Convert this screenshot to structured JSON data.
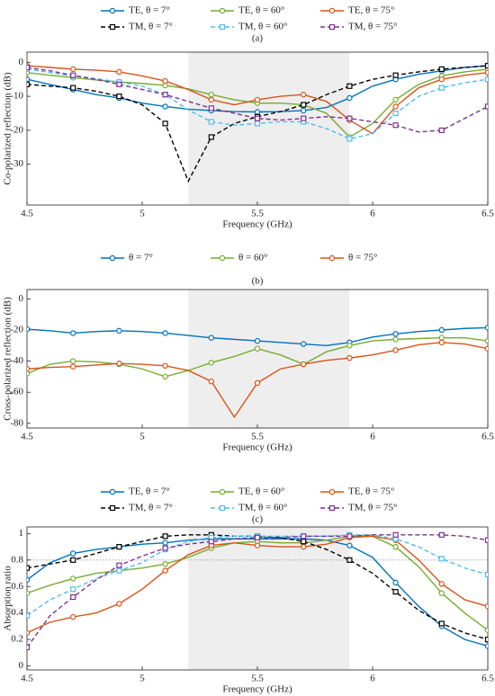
{
  "chart_data": [
    {
      "type": "line",
      "title": "(a)",
      "xlabel": "Frequency (GHz)",
      "ylabel": "Co-polarized reflection (dB)",
      "x": [
        4.5,
        4.6,
        4.7,
        4.8,
        4.9,
        5.0,
        5.1,
        5.2,
        5.3,
        5.4,
        5.5,
        5.6,
        5.7,
        5.8,
        5.9,
        6.0,
        6.1,
        6.2,
        6.3,
        6.4,
        6.5
      ],
      "xlim": [
        4.5,
        6.5
      ],
      "xticks": [
        4.5,
        5,
        5.5,
        6,
        6.5
      ],
      "ylim": [
        -42,
        3
      ],
      "yticks": [
        0,
        -10,
        -20,
        -30
      ],
      "highlight": [
        5.2,
        5.9
      ],
      "series": [
        {
          "name": "TE, θ = 7°",
          "color": "#0072bd",
          "marker": "circle",
          "dashed": false,
          "values": [
            -5,
            -6.5,
            -8,
            -9.5,
            -10.5,
            -12,
            -13,
            -13.8,
            -14.2,
            -14.5,
            -14.6,
            -14.5,
            -14.2,
            -13.3,
            -10.5,
            -7,
            -5,
            -3.5,
            -2.5,
            -1.5,
            -1
          ]
        },
        {
          "name": "TE, θ = 60°",
          "color": "#77ac30",
          "marker": "circle",
          "dashed": false,
          "values": [
            -3,
            -3.8,
            -4.5,
            -5.2,
            -5.8,
            -6.2,
            -6.8,
            -7.8,
            -9.5,
            -11,
            -12,
            -12,
            -12.5,
            -15,
            -22,
            -18,
            -11,
            -6.5,
            -4,
            -2.8,
            -2
          ]
        },
        {
          "name": "TE, θ = 75°",
          "color": "#d95319",
          "marker": "circle",
          "dashed": false,
          "values": [
            -1,
            -1.5,
            -2,
            -2.3,
            -2.8,
            -4,
            -5.5,
            -8,
            -11,
            -12.5,
            -11,
            -10,
            -9.5,
            -11.5,
            -17,
            -21,
            -13,
            -7.5,
            -5,
            -3.8,
            -3
          ]
        },
        {
          "name": "TM, θ = 7°",
          "color": "#000000",
          "marker": "square",
          "dashed": true,
          "values": [
            -6.5,
            -7,
            -7.5,
            -8.5,
            -10,
            -12.5,
            -18,
            -35,
            -22,
            -18,
            -16,
            -14.5,
            -12.5,
            -9.5,
            -7,
            -5,
            -3.8,
            -2.8,
            -2,
            -1.5,
            -1
          ]
        },
        {
          "name": "TM, θ = 60°",
          "color": "#4dbeee",
          "marker": "square",
          "dashed": true,
          "values": [
            -2,
            -3,
            -4,
            -4.8,
            -5.8,
            -7,
            -9.5,
            -14,
            -17.5,
            -18.5,
            -18,
            -17.5,
            -17.5,
            -19.5,
            -22.5,
            -21,
            -15,
            -10,
            -7.5,
            -6,
            -5
          ]
        },
        {
          "name": "TM, θ = 75°",
          "color": "#7e2f8e",
          "marker": "square",
          "dashed": true,
          "values": [
            -1.5,
            -2.5,
            -3.8,
            -5,
            -6.5,
            -8,
            -9.5,
            -11.5,
            -13.5,
            -15,
            -16.5,
            -17,
            -16.5,
            -16,
            -16.5,
            -17.5,
            -18.5,
            -20.5,
            -20,
            -16.5,
            -13
          ]
        }
      ]
    },
    {
      "type": "line",
      "title": "(b)",
      "xlabel": "Frequency (GHz)",
      "ylabel": "Cross-polarized reflection (dB)",
      "x": [
        4.5,
        4.6,
        4.7,
        4.8,
        4.9,
        5.0,
        5.1,
        5.2,
        5.3,
        5.4,
        5.5,
        5.6,
        5.7,
        5.8,
        5.9,
        6.0,
        6.1,
        6.2,
        6.3,
        6.4,
        6.5
      ],
      "xlim": [
        4.5,
        6.5
      ],
      "xticks": [
        4.5,
        5,
        5.5,
        6,
        6.5
      ],
      "ylim": [
        -83,
        6
      ],
      "yticks": [
        0,
        -20,
        -40,
        -60,
        -80
      ],
      "highlight": [
        5.2,
        5.9
      ],
      "series": [
        {
          "name": "θ = 7°",
          "color": "#0072bd",
          "marker": "circle",
          "dashed": false,
          "values": [
            -19.5,
            -20.5,
            -22,
            -21,
            -20.5,
            -21,
            -22,
            -23.5,
            -25,
            -26,
            -27,
            -28,
            -29,
            -30,
            -28,
            -24.5,
            -22.5,
            -21,
            -20,
            -19,
            -18.5
          ]
        },
        {
          "name": "θ = 60°",
          "color": "#77ac30",
          "marker": "circle",
          "dashed": false,
          "values": [
            -48,
            -42,
            -40,
            -40.5,
            -42,
            -45,
            -50,
            -46,
            -41,
            -37,
            -32,
            -36,
            -42,
            -34,
            -30,
            -27,
            -26,
            -25.5,
            -25,
            -25,
            -27
          ]
        },
        {
          "name": "θ = 75°",
          "color": "#d95319",
          "marker": "circle",
          "dashed": false,
          "values": [
            -45,
            -44,
            -43.5,
            -42.5,
            -41.5,
            -42,
            -43,
            -46,
            -53,
            -76,
            -54,
            -45,
            -42,
            -39.5,
            -38,
            -36,
            -33,
            -29.5,
            -28,
            -29,
            -32
          ]
        }
      ]
    },
    {
      "type": "line",
      "title": "(c)",
      "xlabel": "Frequency (GHz)",
      "ylabel": "Absorption ratio",
      "x": [
        4.5,
        4.6,
        4.7,
        4.8,
        4.9,
        5.0,
        5.1,
        5.2,
        5.3,
        5.4,
        5.5,
        5.6,
        5.7,
        5.8,
        5.9,
        6.0,
        6.1,
        6.2,
        6.3,
        6.4,
        6.5
      ],
      "xlim": [
        4.5,
        6.5
      ],
      "xticks": [
        4.5,
        5,
        5.5,
        6,
        6.5
      ],
      "ylim": [
        -0.03,
        1.05
      ],
      "yticks": [
        0,
        0.2,
        0.4,
        0.6,
        0.8,
        1
      ],
      "highlight": [
        5.2,
        5.9
      ],
      "reference_line": 0.8,
      "series": [
        {
          "name": "TE, θ = 7°",
          "color": "#0072bd",
          "marker": "circle",
          "dashed": false,
          "values": [
            0.65,
            0.78,
            0.85,
            0.88,
            0.9,
            0.92,
            0.93,
            0.95,
            0.96,
            0.96,
            0.96,
            0.96,
            0.96,
            0.95,
            0.91,
            0.82,
            0.63,
            0.45,
            0.3,
            0.2,
            0.15
          ]
        },
        {
          "name": "TE, θ = 60°",
          "color": "#77ac30",
          "marker": "circle",
          "dashed": false,
          "values": [
            0.55,
            0.61,
            0.66,
            0.7,
            0.72,
            0.74,
            0.77,
            0.82,
            0.89,
            0.93,
            0.94,
            0.93,
            0.93,
            0.95,
            0.98,
            0.98,
            0.9,
            0.75,
            0.55,
            0.4,
            0.27
          ]
        },
        {
          "name": "TE, θ = 75°",
          "color": "#d95319",
          "marker": "circle",
          "dashed": false,
          "values": [
            0.25,
            0.33,
            0.37,
            0.4,
            0.47,
            0.58,
            0.72,
            0.84,
            0.91,
            0.93,
            0.91,
            0.9,
            0.9,
            0.92,
            0.97,
            0.98,
            0.95,
            0.8,
            0.62,
            0.5,
            0.45
          ]
        },
        {
          "name": "TM, θ = 7°",
          "color": "#000000",
          "marker": "square",
          "dashed": true,
          "values": [
            0.74,
            0.77,
            0.8,
            0.85,
            0.9,
            0.94,
            0.98,
            0.99,
            0.99,
            0.98,
            0.98,
            0.97,
            0.94,
            0.88,
            0.8,
            0.7,
            0.56,
            0.42,
            0.32,
            0.25,
            0.2
          ]
        },
        {
          "name": "TM, θ = 60°",
          "color": "#4dbeee",
          "marker": "square",
          "dashed": true,
          "values": [
            0.38,
            0.5,
            0.58,
            0.66,
            0.72,
            0.78,
            0.88,
            0.94,
            0.97,
            0.98,
            0.98,
            0.98,
            0.98,
            0.98,
            0.99,
            0.99,
            0.96,
            0.9,
            0.81,
            0.74,
            0.69
          ]
        },
        {
          "name": "TM, θ = 75°",
          "color": "#7e2f8e",
          "marker": "square",
          "dashed": true,
          "values": [
            0.14,
            0.38,
            0.52,
            0.65,
            0.76,
            0.83,
            0.89,
            0.92,
            0.94,
            0.96,
            0.97,
            0.97,
            0.98,
            0.98,
            0.98,
            0.99,
            0.99,
            0.99,
            0.99,
            0.98,
            0.95
          ]
        }
      ]
    }
  ]
}
